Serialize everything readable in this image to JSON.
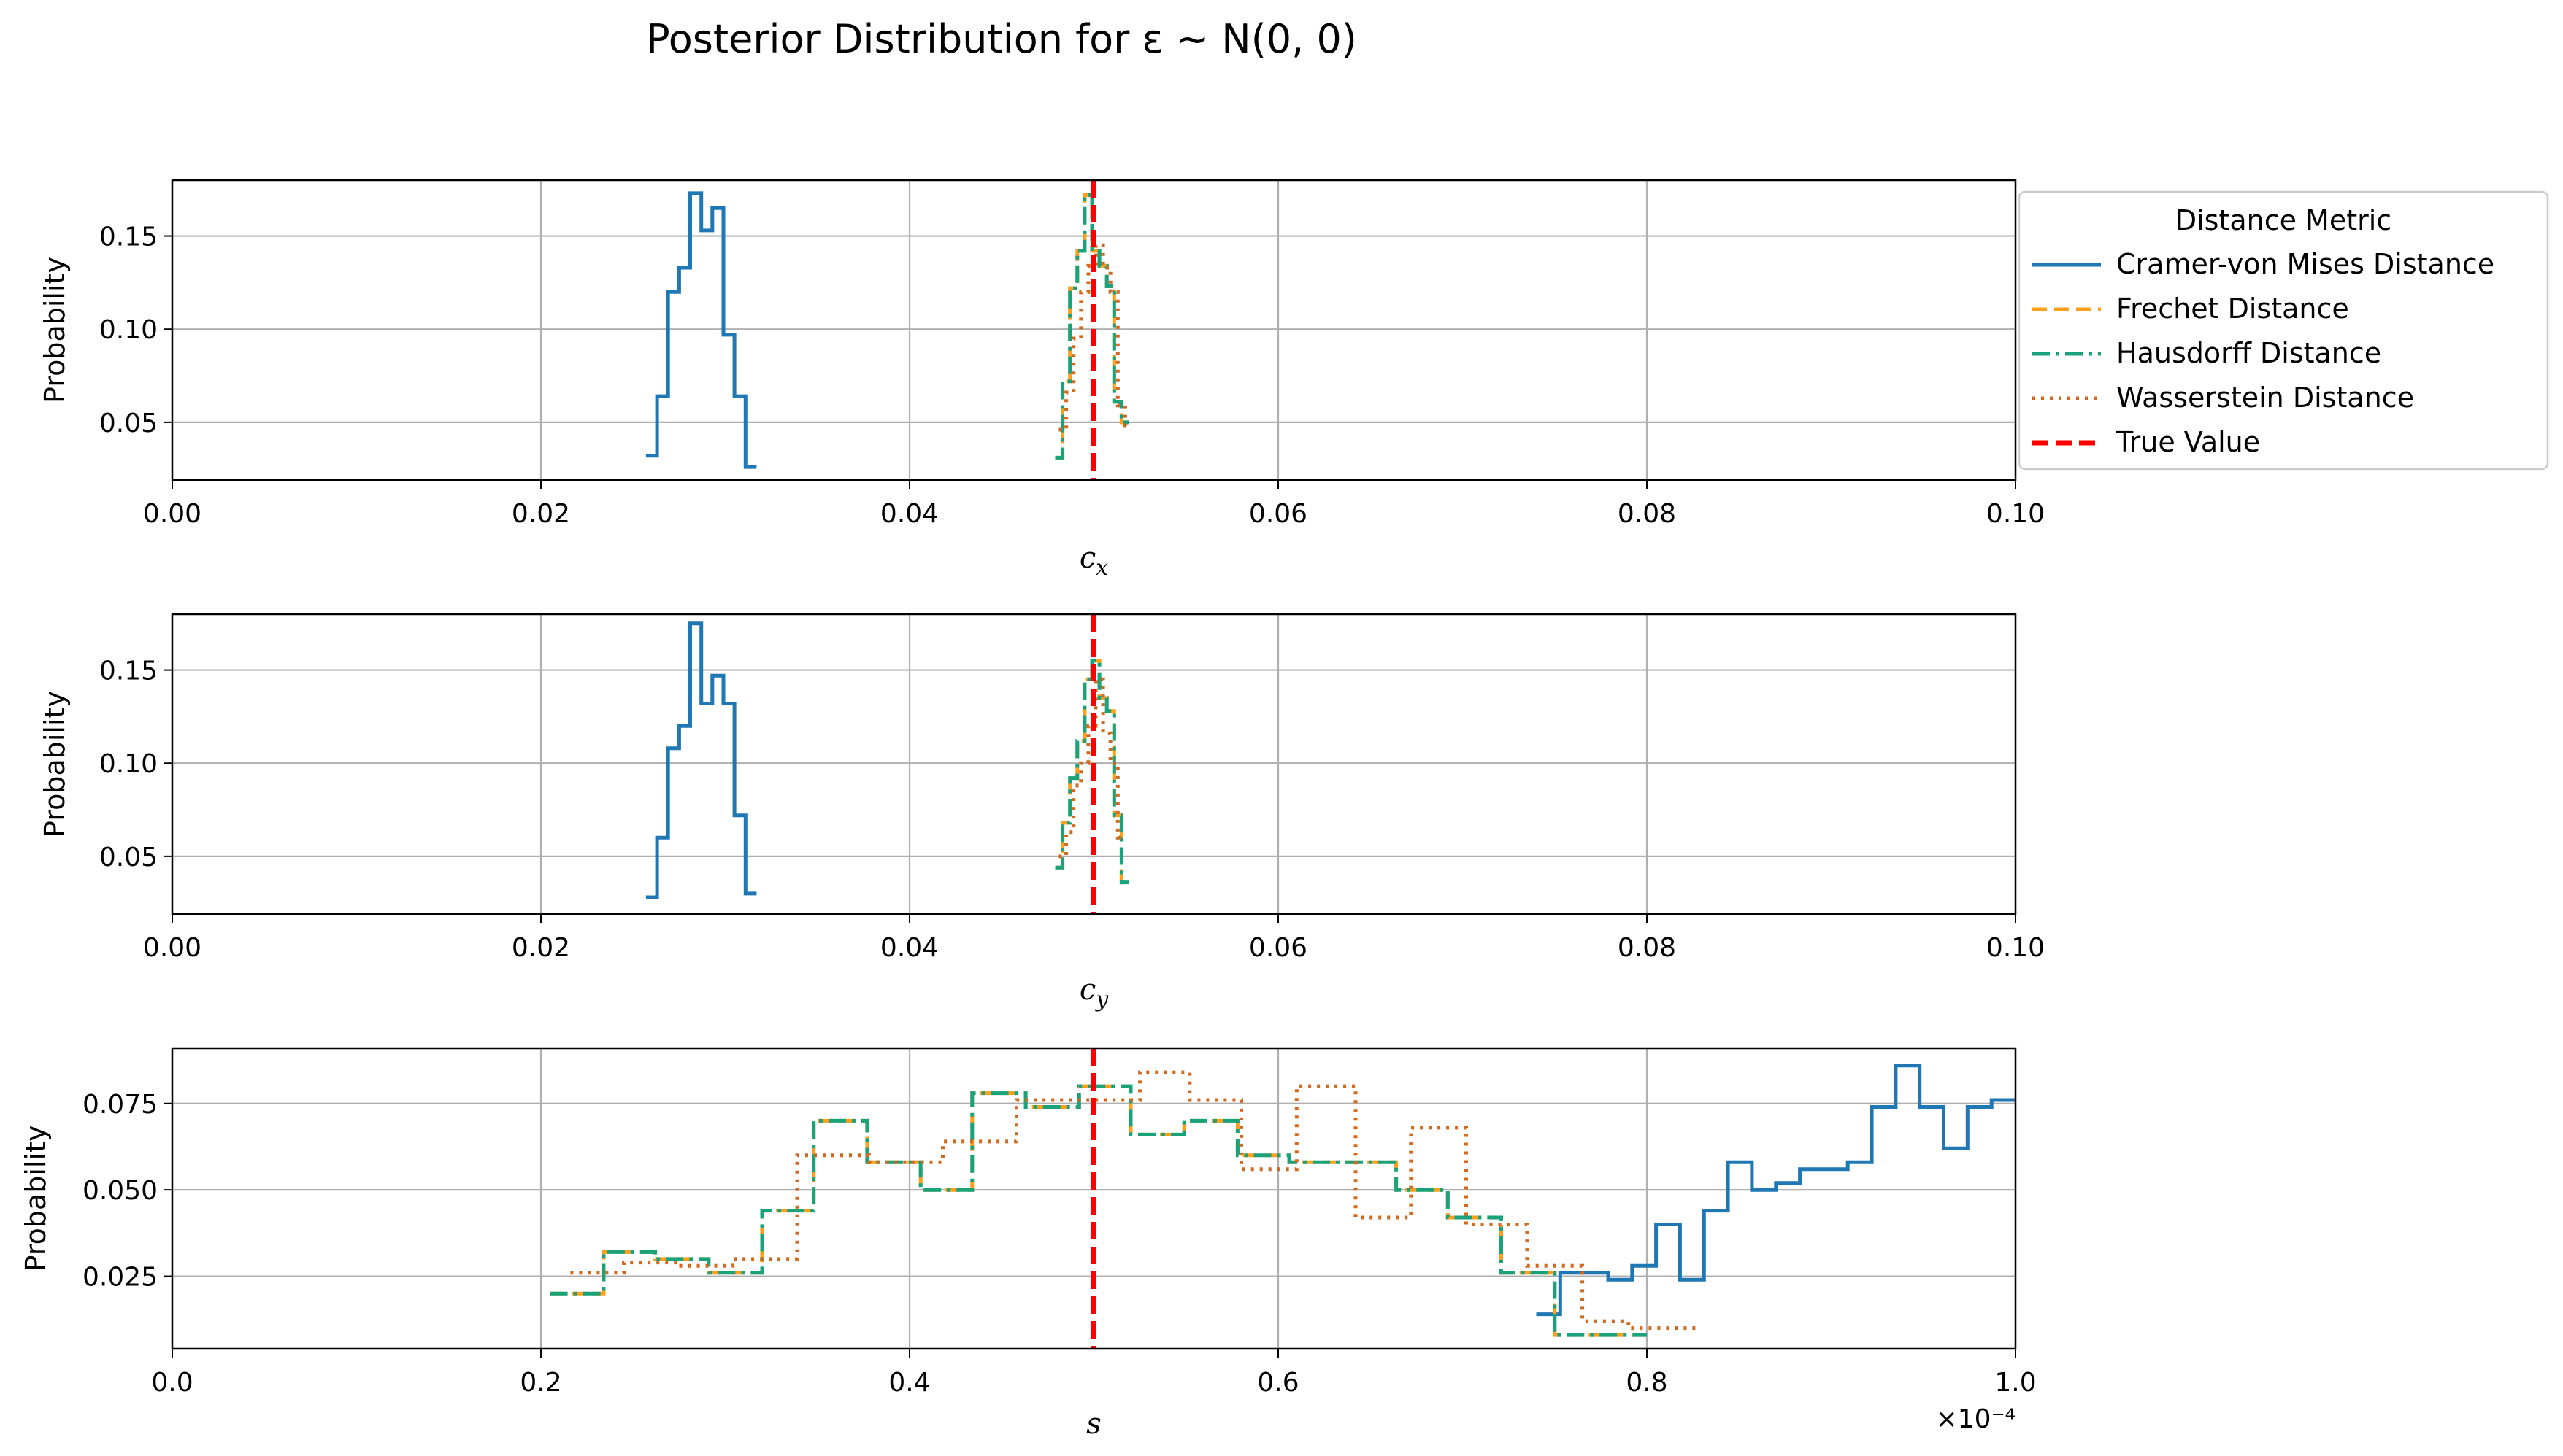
{
  "title": "Posterior Distribution for ε ~ N(0, 0)",
  "legend": {
    "title": "Distance Metric",
    "items": [
      {
        "label": "Cramer-von Mises Distance",
        "color": "#1f77b4",
        "dash": "solid"
      },
      {
        "label": "Frechet Distance",
        "color": "#ff9f1c",
        "dash": "dashed"
      },
      {
        "label": "Hausdorff Distance",
        "color": "#1aa37a",
        "dash": "dashdot"
      },
      {
        "label": "Wasserstein Distance",
        "color": "#d2691e",
        "dash": "dotted"
      },
      {
        "label": "True Value",
        "color": "#ff0000",
        "dash": "dashed-thick"
      }
    ]
  },
  "chart_data": [
    {
      "type": "line",
      "xlabel": "c_x",
      "ylabel": "Probability",
      "xlim": [
        0.0,
        0.1
      ],
      "ylim": [
        0.019,
        0.18
      ],
      "xticks": [
        "0.00",
        "0.02",
        "0.04",
        "0.06",
        "0.08",
        "0.10"
      ],
      "yticks": [
        "0.05",
        "0.10",
        "0.15"
      ],
      "true_value": 0.05,
      "grid": true,
      "legend_position": "outside-right",
      "series": [
        {
          "name": "Cramer-von Mises Distance",
          "edges": [
            0.0257,
            0.0263,
            0.0269,
            0.0275,
            0.0281,
            0.0287,
            0.0293,
            0.0299,
            0.0305,
            0.0311,
            0.0317
          ],
          "values": [
            0.032,
            0.064,
            0.12,
            0.133,
            0.173,
            0.153,
            0.165,
            0.097,
            0.064,
            0.026
          ]
        },
        {
          "name": "Frechet Distance",
          "edges": [
            0.0479,
            0.0483,
            0.0487,
            0.0491,
            0.0495,
            0.0499,
            0.0503,
            0.0507,
            0.0511,
            0.0515,
            0.0519
          ],
          "values": [
            0.031,
            0.072,
            0.122,
            0.142,
            0.172,
            0.142,
            0.134,
            0.123,
            0.061,
            0.05
          ]
        },
        {
          "name": "Hausdorff Distance",
          "edges": [
            0.0479,
            0.0483,
            0.0487,
            0.0491,
            0.0495,
            0.0499,
            0.0503,
            0.0507,
            0.0511,
            0.0515,
            0.0519
          ],
          "values": [
            0.031,
            0.072,
            0.122,
            0.142,
            0.172,
            0.142,
            0.134,
            0.123,
            0.061,
            0.05
          ]
        },
        {
          "name": "Wasserstein Distance",
          "edges": [
            0.0481,
            0.0485,
            0.0489,
            0.0493,
            0.0497,
            0.0501,
            0.0505,
            0.0509,
            0.0513,
            0.0517,
            0.0519
          ],
          "values": [
            0.046,
            0.066,
            0.095,
            0.12,
            0.134,
            0.145,
            0.133,
            0.12,
            0.059,
            0.048
          ]
        }
      ]
    },
    {
      "type": "line",
      "xlabel": "c_y",
      "ylabel": "Probability",
      "xlim": [
        0.0,
        0.1
      ],
      "ylim": [
        0.019,
        0.18
      ],
      "xticks": [
        "0.00",
        "0.02",
        "0.04",
        "0.06",
        "0.08",
        "0.10"
      ],
      "yticks": [
        "0.05",
        "0.10",
        "0.15"
      ],
      "true_value": 0.05,
      "grid": true,
      "series": [
        {
          "name": "Cramer-von Mises Distance",
          "edges": [
            0.0257,
            0.0263,
            0.0269,
            0.0275,
            0.0281,
            0.0287,
            0.0293,
            0.0299,
            0.0305,
            0.0311,
            0.0317
          ],
          "values": [
            0.028,
            0.06,
            0.108,
            0.12,
            0.175,
            0.132,
            0.147,
            0.132,
            0.072,
            0.03
          ]
        },
        {
          "name": "Frechet Distance",
          "edges": [
            0.0479,
            0.0483,
            0.0487,
            0.0491,
            0.0495,
            0.0499,
            0.0503,
            0.0507,
            0.0511,
            0.0515,
            0.0519
          ],
          "values": [
            0.044,
            0.068,
            0.092,
            0.112,
            0.145,
            0.155,
            0.135,
            0.128,
            0.072,
            0.036
          ]
        },
        {
          "name": "Hausdorff Distance",
          "edges": [
            0.0479,
            0.0483,
            0.0487,
            0.0491,
            0.0495,
            0.0499,
            0.0503,
            0.0507,
            0.0511,
            0.0515,
            0.0519
          ],
          "values": [
            0.044,
            0.068,
            0.092,
            0.112,
            0.145,
            0.155,
            0.135,
            0.128,
            0.072,
            0.036
          ]
        },
        {
          "name": "Wasserstein Distance",
          "edges": [
            0.0481,
            0.0485,
            0.0489,
            0.0493,
            0.0497,
            0.0501,
            0.0505,
            0.0509,
            0.0513,
            0.0517
          ],
          "values": [
            0.05,
            0.063,
            0.088,
            0.1,
            0.12,
            0.145,
            0.116,
            0.1,
            0.06
          ]
        }
      ]
    },
    {
      "type": "line",
      "xlabel": "s",
      "ylabel": "Probability",
      "xlim": [
        0.0,
        1.0
      ],
      "ylim": [
        0.004,
        0.091
      ],
      "x_multiplier": "×10⁻⁴",
      "xticks": [
        "0.0",
        "0.2",
        "0.4",
        "0.6",
        "0.8",
        "1.0"
      ],
      "yticks": [
        "0.025",
        "0.050",
        "0.075"
      ],
      "true_value": 0.5,
      "grid": true,
      "series": [
        {
          "name": "Cramer-von Mises Distance",
          "edges": [
            0.74,
            0.753,
            0.766,
            0.779,
            0.792,
            0.805,
            0.818,
            0.831,
            0.844,
            0.857,
            0.87,
            0.883,
            0.896,
            0.909,
            0.922,
            0.935,
            0.948,
            0.961,
            0.974,
            0.987,
            1.0
          ],
          "values": [
            0.014,
            0.026,
            0.026,
            0.024,
            0.028,
            0.04,
            0.024,
            0.044,
            0.058,
            0.05,
            0.052,
            0.056,
            0.056,
            0.058,
            0.074,
            0.086,
            0.074,
            0.062,
            0.074,
            0.076
          ]
        },
        {
          "name": "Frechet Distance",
          "edges": [
            0.205,
            0.234,
            0.262,
            0.291,
            0.32,
            0.348,
            0.377,
            0.406,
            0.434,
            0.463,
            0.492,
            0.52,
            0.549,
            0.578,
            0.606,
            0.635,
            0.664,
            0.692,
            0.721,
            0.75,
            0.772,
            0.8
          ],
          "values": [
            0.02,
            0.032,
            0.03,
            0.026,
            0.044,
            0.07,
            0.058,
            0.05,
            0.078,
            0.074,
            0.08,
            0.066,
            0.07,
            0.06,
            0.058,
            0.058,
            0.05,
            0.042,
            0.026,
            0.008,
            0.008
          ]
        },
        {
          "name": "Hausdorff Distance",
          "edges": [
            0.205,
            0.234,
            0.262,
            0.291,
            0.32,
            0.348,
            0.377,
            0.406,
            0.434,
            0.463,
            0.492,
            0.52,
            0.549,
            0.578,
            0.606,
            0.635,
            0.664,
            0.692,
            0.721,
            0.75,
            0.772,
            0.8
          ],
          "values": [
            0.02,
            0.032,
            0.03,
            0.026,
            0.044,
            0.07,
            0.058,
            0.05,
            0.078,
            0.074,
            0.08,
            0.066,
            0.07,
            0.06,
            0.058,
            0.058,
            0.05,
            0.042,
            0.026,
            0.008,
            0.008
          ]
        },
        {
          "name": "Wasserstein Distance",
          "edges": [
            0.216,
            0.245,
            0.274,
            0.304,
            0.339,
            0.378,
            0.418,
            0.458,
            0.5,
            0.525,
            0.552,
            0.58,
            0.61,
            0.642,
            0.672,
            0.702,
            0.735,
            0.765,
            0.79,
            0.828
          ],
          "values": [
            0.026,
            0.029,
            0.028,
            0.03,
            0.06,
            0.058,
            0.064,
            0.076,
            0.076,
            0.084,
            0.076,
            0.056,
            0.08,
            0.042,
            0.068,
            0.04,
            0.028,
            0.012,
            0.01
          ]
        }
      ]
    }
  ]
}
